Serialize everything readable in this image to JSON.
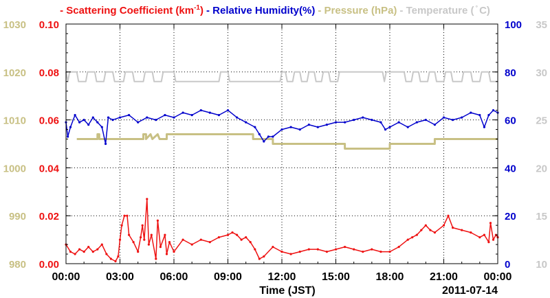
{
  "legend": [
    {
      "label": "- Scattering Coefficient (km",
      "sup": "-1",
      "tail": ")",
      "color": "#ee1111"
    },
    {
      "label": "- Relative Humidity(%)",
      "color": "#0000cc"
    },
    {
      "label": "- Pressure (hPa)",
      "color": "#c8c084"
    },
    {
      "label": "- Temperature (",
      "sym": "°",
      "tail": "C)",
      "color": "#c8c8c8"
    }
  ],
  "xaxis": {
    "label": "Time (JST)",
    "date": "2011-07-14",
    "ticks": [
      "00:00",
      "03:00",
      "06:00",
      "09:00",
      "12:00",
      "15:00",
      "18:00",
      "21:00",
      "00:00"
    ]
  },
  "axes": {
    "pressure": {
      "ticks": [
        "980",
        "990",
        "1000",
        "1010",
        "1020",
        "1030"
      ],
      "color": "#c8c084"
    },
    "scattering": {
      "ticks": [
        "0.00",
        "0.02",
        "0.04",
        "0.06",
        "0.08",
        "0.10"
      ],
      "color": "#ee1111"
    },
    "humidity": {
      "ticks": [
        "0",
        "20",
        "40",
        "60",
        "80",
        "100"
      ],
      "color": "#0000cc"
    },
    "temperature": {
      "ticks": [
        "10",
        "15",
        "20",
        "25",
        "30",
        "35"
      ],
      "color": "#c8c8c8"
    }
  },
  "chart_data": {
    "type": "line",
    "x_unit": "hours (JST)",
    "xlim": [
      0,
      24
    ],
    "grid": true,
    "series": [
      {
        "name": "Scattering Coefficient (km-1)",
        "axis": "scattering",
        "ylim": [
          0,
          0.1
        ],
        "color": "#ee1111",
        "points": [
          [
            0,
            0.008
          ],
          [
            0.25,
            0.005
          ],
          [
            0.5,
            0.004
          ],
          [
            0.75,
            0.006
          ],
          [
            1,
            0.005
          ],
          [
            1.25,
            0.007
          ],
          [
            1.5,
            0.005
          ],
          [
            1.75,
            0.006
          ],
          [
            2,
            0.008
          ],
          [
            2.25,
            0.004
          ],
          [
            2.5,
            0.002
          ],
          [
            2.75,
            0.001
          ],
          [
            2.9,
            0.003
          ],
          [
            3,
            0.01
          ],
          [
            3.1,
            0.016
          ],
          [
            3.25,
            0.02
          ],
          [
            3.4,
            0.02
          ],
          [
            3.5,
            0.012
          ],
          [
            3.75,
            0.009
          ],
          [
            4,
            0.005
          ],
          [
            4.15,
            0.011
          ],
          [
            4.25,
            0.016
          ],
          [
            4.35,
            0.01
          ],
          [
            4.5,
            0.027
          ],
          [
            4.6,
            0.008
          ],
          [
            4.75,
            0.012
          ],
          [
            5,
            0.002
          ],
          [
            5.1,
            0.018
          ],
          [
            5.25,
            0.007
          ],
          [
            5.5,
            0.012
          ],
          [
            5.6,
            0.004
          ],
          [
            5.75,
            0.009
          ],
          [
            6,
            0.005
          ],
          [
            6.5,
            0.01
          ],
          [
            7,
            0.008
          ],
          [
            7.5,
            0.01
          ],
          [
            8,
            0.009
          ],
          [
            8.5,
            0.011
          ],
          [
            9,
            0.012
          ],
          [
            9.25,
            0.013
          ],
          [
            9.5,
            0.012
          ],
          [
            9.75,
            0.01
          ],
          [
            10,
            0.011
          ],
          [
            10.25,
            0.009
          ],
          [
            10.5,
            0.006
          ],
          [
            10.75,
            0.002
          ],
          [
            11,
            0.003
          ],
          [
            11.5,
            0.007
          ],
          [
            12,
            0.005
          ],
          [
            12.5,
            0.004
          ],
          [
            13,
            0.005
          ],
          [
            13.5,
            0.006
          ],
          [
            14,
            0.006
          ],
          [
            14.5,
            0.005
          ],
          [
            15,
            0.006
          ],
          [
            15.5,
            0.007
          ],
          [
            16,
            0.006
          ],
          [
            16.5,
            0.005
          ],
          [
            17,
            0.006
          ],
          [
            17.5,
            0.005
          ],
          [
            18,
            0.005
          ],
          [
            18.5,
            0.007
          ],
          [
            19,
            0.01
          ],
          [
            19.25,
            0.011
          ],
          [
            19.5,
            0.012
          ],
          [
            19.75,
            0.014
          ],
          [
            20,
            0.016
          ],
          [
            20.25,
            0.014
          ],
          [
            20.5,
            0.013
          ],
          [
            21,
            0.016
          ],
          [
            21.25,
            0.02
          ],
          [
            21.5,
            0.015
          ],
          [
            22,
            0.014
          ],
          [
            22.5,
            0.013
          ],
          [
            23,
            0.011
          ],
          [
            23.25,
            0.012
          ],
          [
            23.5,
            0.009
          ],
          [
            23.6,
            0.017
          ],
          [
            23.75,
            0.01
          ],
          [
            23.9,
            0.012
          ],
          [
            24,
            0.011
          ]
        ]
      },
      {
        "name": "Relative Humidity(%)",
        "axis": "humidity",
        "ylim": [
          0,
          100
        ],
        "color": "#0000cc",
        "points": [
          [
            0,
            59
          ],
          [
            0.1,
            53
          ],
          [
            0.25,
            57
          ],
          [
            0.5,
            62
          ],
          [
            0.75,
            59
          ],
          [
            1,
            60
          ],
          [
            1.25,
            58
          ],
          [
            1.5,
            61
          ],
          [
            1.75,
            59
          ],
          [
            2,
            57
          ],
          [
            2.2,
            50
          ],
          [
            2.35,
            61
          ],
          [
            2.6,
            60
          ],
          [
            3,
            61
          ],
          [
            3.5,
            62
          ],
          [
            4,
            59
          ],
          [
            4.5,
            61
          ],
          [
            5,
            60
          ],
          [
            5.5,
            62
          ],
          [
            6,
            61
          ],
          [
            6.5,
            63
          ],
          [
            7,
            62
          ],
          [
            7.5,
            64
          ],
          [
            8,
            63
          ],
          [
            8.5,
            62
          ],
          [
            9,
            64
          ],
          [
            9.5,
            61
          ],
          [
            10,
            59
          ],
          [
            10.5,
            57
          ],
          [
            10.75,
            54
          ],
          [
            11,
            51
          ],
          [
            11.25,
            53
          ],
          [
            11.5,
            53
          ],
          [
            12,
            56
          ],
          [
            12.5,
            57
          ],
          [
            13,
            56
          ],
          [
            13.5,
            58
          ],
          [
            14,
            57
          ],
          [
            14.5,
            58
          ],
          [
            15,
            59
          ],
          [
            15.5,
            59
          ],
          [
            16,
            60
          ],
          [
            16.5,
            61
          ],
          [
            17,
            60
          ],
          [
            17.5,
            59
          ],
          [
            17.75,
            56
          ],
          [
            18,
            57
          ],
          [
            18.5,
            59
          ],
          [
            19,
            57
          ],
          [
            19.5,
            59
          ],
          [
            20,
            60
          ],
          [
            20.5,
            58
          ],
          [
            21,
            61
          ],
          [
            21.5,
            60
          ],
          [
            22,
            61
          ],
          [
            22.5,
            63
          ],
          [
            23,
            62
          ],
          [
            23.25,
            57
          ],
          [
            23.5,
            62
          ],
          [
            23.75,
            64
          ],
          [
            24,
            63
          ]
        ]
      },
      {
        "name": "Pressure (hPa)",
        "axis": "pressure",
        "ylim": [
          980,
          1030
        ],
        "color": "#c8c084",
        "points": [
          [
            0.6,
            1006
          ],
          [
            1.75,
            1006
          ],
          [
            1.75,
            1007
          ],
          [
            1.85,
            1007
          ],
          [
            1.85,
            1006
          ],
          [
            4.3,
            1006
          ],
          [
            4.3,
            1007
          ],
          [
            4.45,
            1007
          ],
          [
            4.45,
            1006
          ],
          [
            4.7,
            1007
          ],
          [
            4.8,
            1006
          ],
          [
            5.1,
            1007
          ],
          [
            5.2,
            1006
          ],
          [
            5.6,
            1006
          ],
          [
            5.6,
            1007
          ],
          [
            10.4,
            1007
          ],
          [
            10.4,
            1006
          ],
          [
            11.5,
            1006
          ],
          [
            11.5,
            1005
          ],
          [
            15.5,
            1005
          ],
          [
            15.5,
            1004
          ],
          [
            18,
            1004
          ],
          [
            18,
            1005
          ],
          [
            20.5,
            1005
          ],
          [
            20.5,
            1006
          ],
          [
            24,
            1006
          ]
        ]
      },
      {
        "name": "Temperature (°C)",
        "axis": "temperature",
        "ylim": [
          10,
          35
        ],
        "color": "#c8c8c8",
        "points": [
          [
            0,
            30
          ],
          [
            0.1,
            29
          ],
          [
            0.2,
            30
          ],
          [
            0.6,
            30
          ],
          [
            0.7,
            29
          ],
          [
            1.1,
            29
          ],
          [
            1.2,
            30
          ],
          [
            1.6,
            30
          ],
          [
            1.7,
            29
          ],
          [
            2.1,
            29
          ],
          [
            2.2,
            30
          ],
          [
            2.6,
            30
          ],
          [
            2.7,
            29
          ],
          [
            3.2,
            29
          ],
          [
            3.3,
            30
          ],
          [
            3.7,
            30
          ],
          [
            3.8,
            29
          ],
          [
            4.3,
            29
          ],
          [
            4.4,
            30
          ],
          [
            4.8,
            30
          ],
          [
            4.9,
            29
          ],
          [
            5.3,
            29
          ],
          [
            5.4,
            30
          ],
          [
            6,
            30
          ],
          [
            6.1,
            29
          ],
          [
            8.5,
            29
          ],
          [
            8.6,
            30
          ],
          [
            9,
            30
          ],
          [
            9.1,
            29
          ],
          [
            11.9,
            29
          ],
          [
            12,
            30
          ],
          [
            12.2,
            30
          ],
          [
            12.3,
            29
          ],
          [
            12.6,
            29
          ],
          [
            12.7,
            30
          ],
          [
            13,
            30
          ],
          [
            13.1,
            29
          ],
          [
            13.4,
            29
          ],
          [
            13.5,
            30
          ],
          [
            13.8,
            30
          ],
          [
            13.9,
            29
          ],
          [
            14.2,
            29
          ],
          [
            14.3,
            30
          ],
          [
            14.6,
            30
          ],
          [
            14.7,
            29
          ],
          [
            15.1,
            29
          ],
          [
            15.2,
            30
          ],
          [
            17.6,
            30
          ],
          [
            17.7,
            29
          ],
          [
            17.8,
            30
          ],
          [
            18.8,
            30
          ],
          [
            18.9,
            29
          ],
          [
            19.2,
            29
          ],
          [
            19.3,
            30
          ],
          [
            19.6,
            30
          ],
          [
            19.7,
            29
          ],
          [
            20.1,
            29
          ],
          [
            20.2,
            30
          ],
          [
            20.5,
            30
          ],
          [
            20.6,
            29
          ],
          [
            21,
            29
          ],
          [
            21.1,
            30
          ],
          [
            21.4,
            30
          ],
          [
            21.5,
            29
          ],
          [
            22,
            29
          ],
          [
            22.1,
            30
          ],
          [
            22.5,
            30
          ],
          [
            22.6,
            29
          ],
          [
            23,
            29
          ],
          [
            23.1,
            30
          ],
          [
            23.5,
            30
          ],
          [
            23.6,
            29
          ],
          [
            24,
            29
          ]
        ]
      }
    ]
  }
}
